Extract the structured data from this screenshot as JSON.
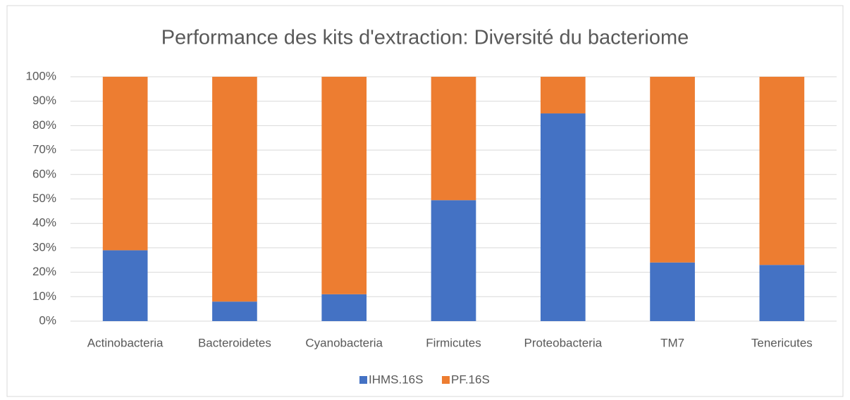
{
  "chart_data": {
    "type": "stacked_bar",
    "title": "Performance des kits d'extraction: Diversité du bacteriome",
    "categories": [
      "Actinobacteria",
      "Bacteroidetes",
      "Cyanobacteria",
      "Firmicutes",
      "Proteobacteria",
      "TM7",
      "Tenericutes"
    ],
    "series": [
      {
        "name": "IHMS.16S",
        "color": "#4472c4",
        "values": [
          29,
          8,
          11,
          49.5,
          85,
          24,
          23
        ]
      },
      {
        "name": "PF.16S",
        "color": "#ed7d31",
        "values": [
          71,
          92,
          89,
          50.5,
          15,
          76,
          77
        ]
      }
    ],
    "ylim": [
      0,
      100
    ],
    "yticks": [
      {
        "value": 0,
        "label": "0%"
      },
      {
        "value": 10,
        "label": "10%"
      },
      {
        "value": 20,
        "label": "20%"
      },
      {
        "value": 30,
        "label": "30%"
      },
      {
        "value": 40,
        "label": "40%"
      },
      {
        "value": 50,
        "label": "50%"
      },
      {
        "value": 60,
        "label": "60%"
      },
      {
        "value": 70,
        "label": "70%"
      },
      {
        "value": 80,
        "label": "80%"
      },
      {
        "value": 90,
        "label": "90%"
      },
      {
        "value": 100,
        "label": "100%"
      }
    ],
    "grid": true,
    "legend": "bottom"
  }
}
